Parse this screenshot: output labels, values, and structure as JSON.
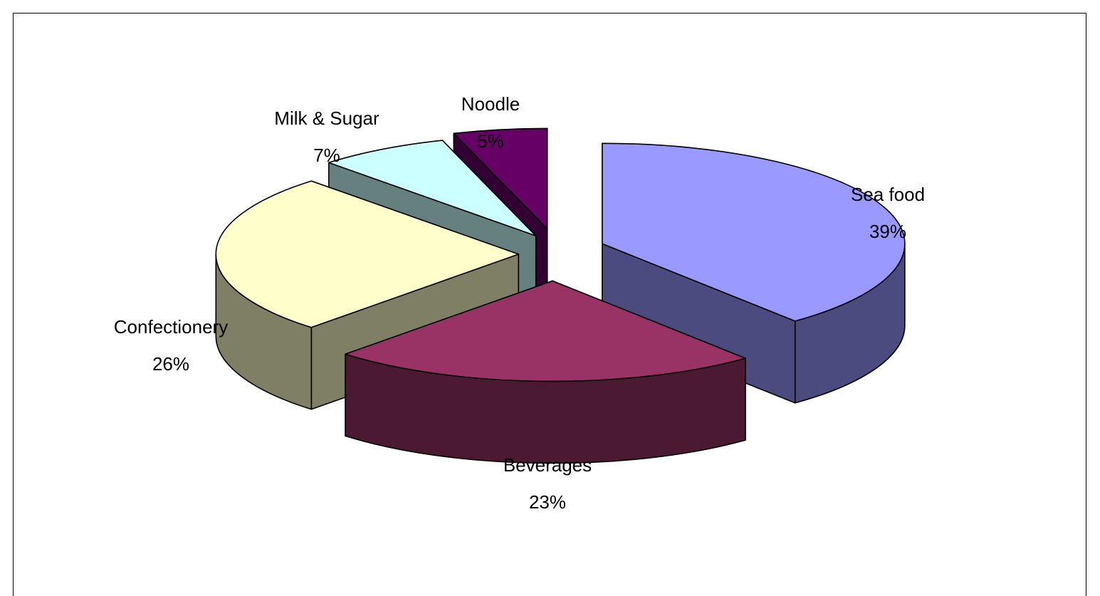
{
  "chart_data": {
    "type": "pie",
    "style": "3d-exploded",
    "categories": [
      "Sea food",
      "Beverages",
      "Confectionery",
      "Milk & Sugar",
      "Noodle"
    ],
    "values": [
      39,
      23,
      26,
      7,
      5
    ],
    "labels": [
      {
        "name": "Sea food",
        "percent": "39%"
      },
      {
        "name": "Beverages",
        "percent": "23%"
      },
      {
        "name": "Confectionery",
        "percent": "26%"
      },
      {
        "name": "Milk & Sugar",
        "percent": "7%"
      },
      {
        "name": "Noodle",
        "percent": "5%"
      }
    ],
    "colors": {
      "Sea food": {
        "top": "#9999ff",
        "side": "#4b4b7f"
      },
      "Beverages": {
        "top": "#993366",
        "side": "#4b1931"
      },
      "Confectionery": {
        "top": "#ffffcc",
        "side": "#7f7f66"
      },
      "Milk & Sugar": {
        "top": "#ccffff",
        "side": "#667f7f"
      },
      "Noodle": {
        "top": "#660066",
        "side": "#330033"
      }
    },
    "legend": "none",
    "title": ""
  }
}
